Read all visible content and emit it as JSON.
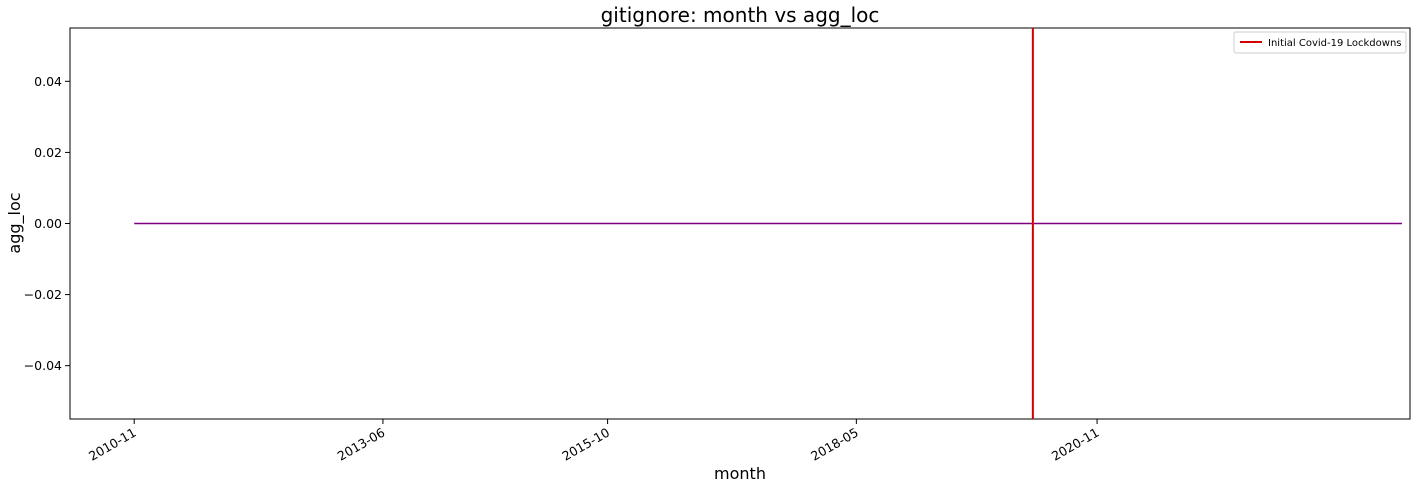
{
  "chart_data": {
    "type": "line",
    "title": "gitignore: month vs agg_loc",
    "xlabel": "month",
    "ylabel": "agg_loc",
    "x_range": [
      "2010-03",
      "2024-02"
    ],
    "x_ticks": [
      "2010-11",
      "2013-06",
      "2015-10",
      "2018-05",
      "2020-11"
    ],
    "ylim": [
      -0.055,
      0.055
    ],
    "y_ticks": [
      0.04,
      0.02,
      0.0,
      -0.02,
      -0.04
    ],
    "y_tick_labels": [
      "0.04",
      "0.02",
      "0.00",
      "−0.02",
      "−0.04"
    ],
    "series": [
      {
        "color": "#800080",
        "x": [
          "2010-11",
          "2024-01"
        ],
        "values": [
          0,
          0
        ]
      }
    ],
    "vlines": [
      {
        "x": "2020-03",
        "label": "Initial Covid-19 Lockdowns",
        "color": "#d40000"
      }
    ],
    "legend": {
      "position": "top-right",
      "entries": [
        "Initial Covid-19 Lockdowns"
      ]
    },
    "grid": false
  }
}
